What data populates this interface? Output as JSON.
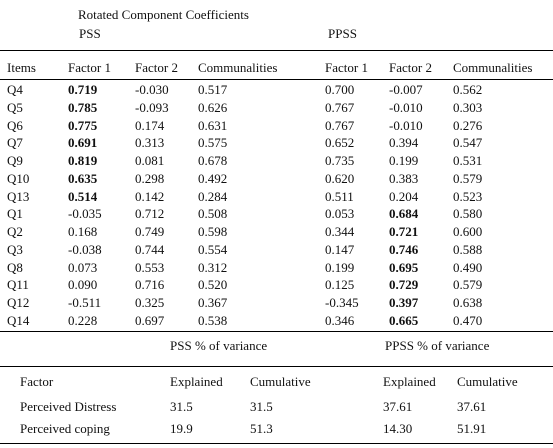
{
  "table": {
    "caption": "Rotated Component Coefficients",
    "group_pss": "PSS",
    "group_ppss": "PPSS",
    "columns": [
      "Items",
      "Factor 1",
      "Factor 2",
      "Communalities",
      "Factor 1",
      "Factor 2",
      "Communalities"
    ],
    "rows": [
      {
        "item": "Q4",
        "pss": [
          "0.719",
          "-0.030",
          "0.517"
        ],
        "ppss": [
          "0.700",
          "-0.007",
          "0.562"
        ],
        "bold": [
          true,
          false,
          false,
          false,
          false,
          false
        ]
      },
      {
        "item": "Q5",
        "pss": [
          "0.785",
          "-0.093",
          "0.626"
        ],
        "ppss": [
          "0.767",
          "-0.010",
          "0.303"
        ],
        "bold": [
          true,
          false,
          false,
          false,
          false,
          false
        ]
      },
      {
        "item": "Q6",
        "pss": [
          "0.775",
          "0.174",
          "0.631"
        ],
        "ppss": [
          "0.767",
          "-0.010",
          "0.276"
        ],
        "bold": [
          true,
          false,
          false,
          false,
          false,
          false
        ]
      },
      {
        "item": "Q7",
        "pss": [
          "0.691",
          "0.313",
          "0.575"
        ],
        "ppss": [
          "0.652",
          "0.394",
          "0.547"
        ],
        "bold": [
          true,
          false,
          false,
          false,
          false,
          false
        ]
      },
      {
        "item": "Q9",
        "pss": [
          "0.819",
          "0.081",
          "0.678"
        ],
        "ppss": [
          "0.735",
          "0.199",
          "0.531"
        ],
        "bold": [
          true,
          false,
          false,
          false,
          false,
          false
        ]
      },
      {
        "item": "Q10",
        "pss": [
          "0.635",
          "0.298",
          "0.492"
        ],
        "ppss": [
          "0.620",
          "0.383",
          "0.579"
        ],
        "bold": [
          true,
          false,
          false,
          false,
          false,
          false
        ]
      },
      {
        "item": "Q13",
        "pss": [
          "0.514",
          "0.142",
          "0.284"
        ],
        "ppss": [
          "0.511",
          "0.204",
          "0.523"
        ],
        "bold": [
          true,
          false,
          false,
          false,
          false,
          false
        ]
      },
      {
        "item": "Q1",
        "pss": [
          "-0.035",
          "0.712",
          "0.508"
        ],
        "ppss": [
          "0.053",
          "0.684",
          "0.580"
        ],
        "bold": [
          false,
          false,
          false,
          false,
          true,
          false
        ]
      },
      {
        "item": "Q2",
        "pss": [
          "0.168",
          "0.749",
          "0.598"
        ],
        "ppss": [
          "0.344",
          "0.721",
          "0.600"
        ],
        "bold": [
          false,
          false,
          false,
          false,
          true,
          false
        ]
      },
      {
        "item": "Q3",
        "pss": [
          "-0.038",
          "0.744",
          "0.554"
        ],
        "ppss": [
          "0.147",
          "0.746",
          "0.588"
        ],
        "bold": [
          false,
          false,
          false,
          false,
          true,
          false
        ]
      },
      {
        "item": "Q8",
        "pss": [
          "0.073",
          "0.553",
          "0.312"
        ],
        "ppss": [
          "0.199",
          "0.695",
          "0.490"
        ],
        "bold": [
          false,
          false,
          false,
          false,
          true,
          false
        ]
      },
      {
        "item": "Q11",
        "pss": [
          "0.090",
          "0.716",
          "0.520"
        ],
        "ppss": [
          "0.125",
          "0.729",
          "0.579"
        ],
        "bold": [
          false,
          false,
          false,
          false,
          true,
          false
        ]
      },
      {
        "item": "Q12",
        "pss": [
          "-0.511",
          "0.325",
          "0.367"
        ],
        "ppss": [
          "-0.345",
          "0.397",
          "0.638"
        ],
        "bold": [
          false,
          false,
          false,
          false,
          true,
          false
        ]
      },
      {
        "item": "Q14",
        "pss": [
          "0.228",
          "0.697",
          "0.538"
        ],
        "ppss": [
          "0.346",
          "0.665",
          "0.470"
        ],
        "bold": [
          false,
          false,
          false,
          false,
          true,
          false
        ]
      }
    ]
  },
  "variance": {
    "pss_title": "PSS % of variance",
    "ppss_title": "PPSS % of variance",
    "columns": [
      "Factor",
      "Explained",
      "Cumulative",
      "Explained",
      "Cumulative"
    ],
    "rows": [
      {
        "factor": "Perceived Distress",
        "values": [
          "31.5",
          "31.5",
          "37.61",
          "37.61"
        ]
      },
      {
        "factor": "Perceived coping",
        "values": [
          "19.9",
          "51.3",
          "14.30",
          "51.91"
        ]
      }
    ]
  }
}
